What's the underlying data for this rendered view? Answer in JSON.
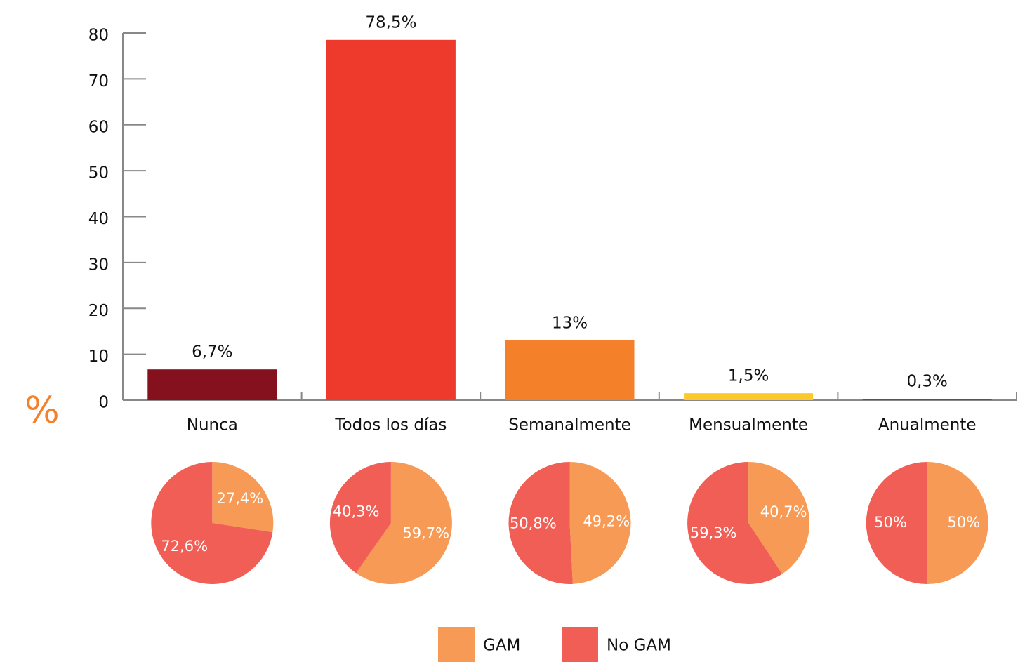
{
  "chart_data": [
    {
      "type": "bar",
      "ylabel": "%",
      "categories": [
        "Nunca",
        "Todos los días",
        "Semanalmente",
        "Mensualmente",
        "Anualmente"
      ],
      "values": [
        6.7,
        78.5,
        13,
        1.5,
        0.3
      ],
      "value_labels": [
        "6,7%",
        "78,5%",
        "13%",
        "1,5%",
        "0,3%"
      ],
      "colors": [
        "#85111f",
        "#ee3a2c",
        "#f4812a",
        "#fcc82a",
        "#555555"
      ],
      "ylim": [
        0,
        80
      ],
      "yticks": [
        0,
        10,
        20,
        30,
        40,
        50,
        60,
        70,
        80
      ]
    },
    {
      "type": "pie",
      "values": [
        27.4,
        72.6
      ],
      "value_labels": [
        "27,4%",
        "72,6%"
      ]
    },
    {
      "type": "pie",
      "values": [
        59.7,
        40.3
      ],
      "value_labels": [
        "59,7%",
        "40,3%"
      ]
    },
    {
      "type": "pie",
      "values": [
        49.2,
        50.8
      ],
      "value_labels": [
        "49,2%",
        "50,8%"
      ]
    },
    {
      "type": "pie",
      "values": [
        40.7,
        59.3
      ],
      "value_labels": [
        "40,7%",
        "59,3%"
      ]
    },
    {
      "type": "pie",
      "values": [
        50,
        50
      ],
      "value_labels": [
        "50%",
        "50%"
      ]
    }
  ],
  "legend": {
    "labels": [
      "GAM",
      "No GAM"
    ],
    "colors": [
      "#f79a55",
      "#f05e55"
    ]
  }
}
